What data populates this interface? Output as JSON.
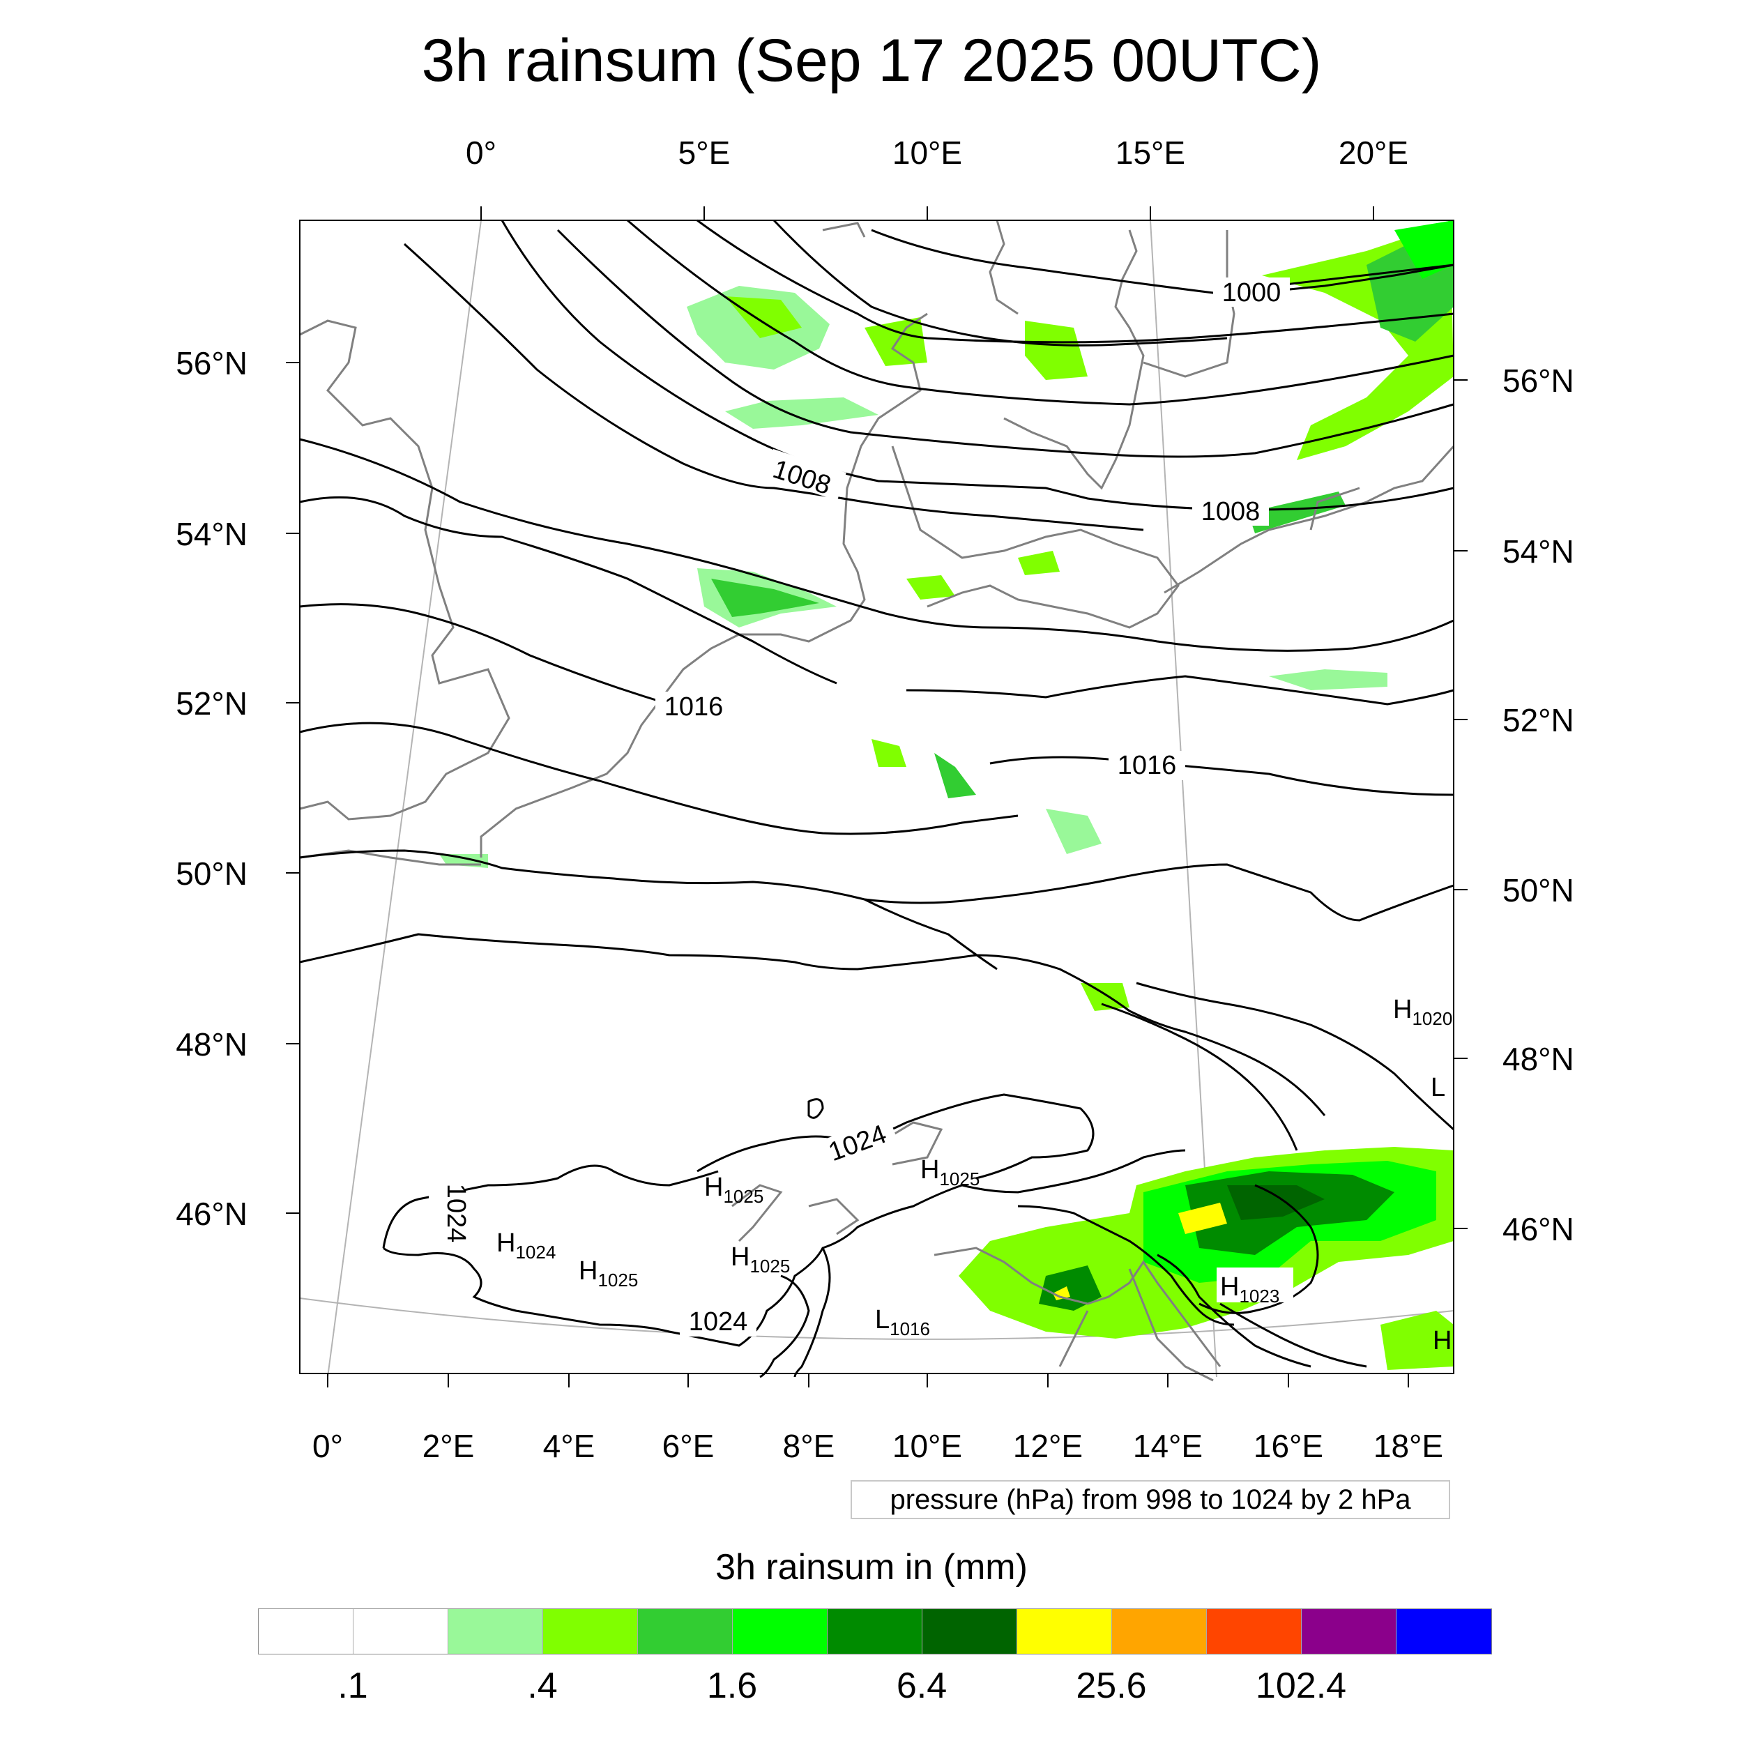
{
  "title": "3h rainsum (Sep 17 2025 00UTC)",
  "map": {
    "top_lon_labels": [
      "0°",
      "5°E",
      "10°E",
      "15°E",
      "20°E"
    ],
    "bottom_lon_labels": [
      "0°",
      "2°E",
      "4°E",
      "6°E",
      "8°E",
      "10°E",
      "12°E",
      "14°E",
      "16°E",
      "18°E"
    ],
    "left_lat_labels": [
      "56°N",
      "54°N",
      "52°N",
      "50°N",
      "48°N",
      "46°N"
    ],
    "right_lat_labels": [
      "56°N",
      "54°N",
      "52°N",
      "50°N",
      "48°N",
      "46°N"
    ],
    "contour_labels": [
      "1000",
      "1008",
      "1008",
      "1016",
      "1016",
      "1024",
      "1024",
      "1024"
    ],
    "pressure_centers": [
      {
        "type": "H",
        "value": "1024"
      },
      {
        "type": "H",
        "value": "1025"
      },
      {
        "type": "H",
        "value": "1025"
      },
      {
        "type": "H",
        "value": "1025"
      },
      {
        "type": "H",
        "value": "1025"
      },
      {
        "type": "H",
        "value": "1023"
      },
      {
        "type": "L",
        "value": "1016"
      },
      {
        "type": "H",
        "value": "1020"
      },
      {
        "type": "L",
        "value": ""
      },
      {
        "type": "H",
        "value": ""
      }
    ],
    "contour_note": "pressure (hPa) from 998 to 1024 by 2 hPa"
  },
  "colorbar": {
    "title": "3h rainsum in (mm)",
    "colors": [
      "#ffffff",
      "#ffffff",
      "#99f899",
      "#80ff00",
      "#32cd32",
      "#00ff00",
      "#008b00",
      "#006400",
      "#ffff00",
      "#ffa500",
      "#ff4500",
      "#8b008b",
      "#0000ff"
    ],
    "labels": [
      ".1",
      ".4",
      "1.6",
      "6.4",
      "25.6",
      "102.4"
    ]
  }
}
